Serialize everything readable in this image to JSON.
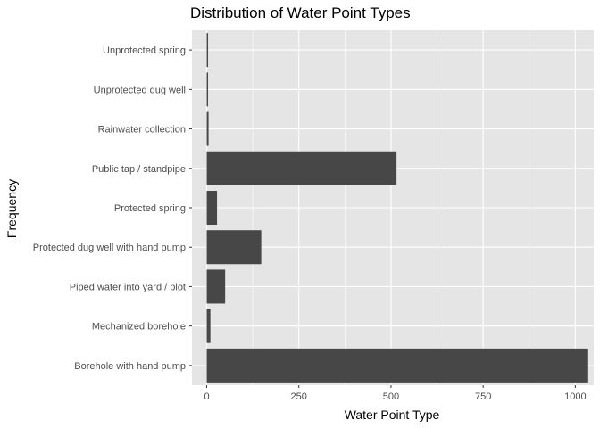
{
  "chart_data": {
    "type": "bar",
    "orientation": "horizontal",
    "title": "Distribution of Water Point Types",
    "xlabel": "Water Point Type",
    "ylabel": "Frequency",
    "categories": [
      "Borehole with hand pump",
      "Mechanized borehole",
      "Piped water into yard / plot",
      "Protected dug well with hand pump",
      "Protected spring",
      "Public tap / standpipe",
      "Rainwater collection",
      "Unprotected dug well",
      "Unprotected spring"
    ],
    "values": [
      1035,
      10,
      50,
      148,
      28,
      515,
      5,
      3,
      3
    ],
    "xlim": [
      -40,
      1050
    ],
    "xticks": [
      0,
      250,
      500,
      750,
      1000
    ],
    "grid": true,
    "bar_color": "#474747",
    "panel_color": "#e5e5e5",
    "grid_color": "#ffffff"
  }
}
